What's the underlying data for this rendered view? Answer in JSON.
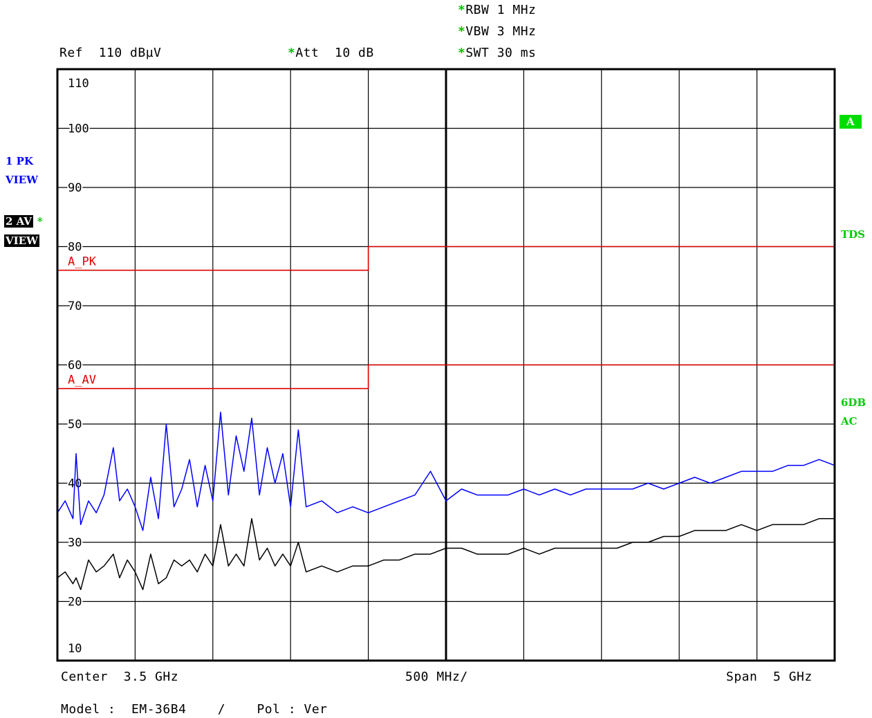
{
  "header": {
    "rbw_label": "RBW",
    "rbw_value": "1 MHz",
    "vbw_label": "VBW",
    "vbw_value": "3 MHz",
    "swt_label": "SWT",
    "swt_value": "30 ms",
    "ref_label": "Ref",
    "ref_value": "110 dBµV",
    "att_label": "Att",
    "att_value": "10 dB",
    "star": "*"
  },
  "left_panel": {
    "trace1_label": "1 PK",
    "trace1_mode": "VIEW",
    "trace2_label": "2 AV",
    "trace2_mode": "VIEW",
    "trace2_star": "*"
  },
  "right_panel": {
    "limit_badge": "A",
    "tds": "TDS",
    "sixdb": "6DB",
    "ac": "AC"
  },
  "footer": {
    "center_label": "Center",
    "center_value": "3.5 GHz",
    "per_div": "500 MHz/",
    "span_label": "Span",
    "span_value": "5 GHz",
    "model_label": "Model :",
    "model_value": "EM-36B4",
    "separator": "/",
    "pol_label": "Pol : Ver"
  },
  "colors": {
    "peak_trace": "#0000ff",
    "average_trace": "#000000",
    "limit_lines": "#e00000",
    "status_green": "#00cc00"
  },
  "chart_data": {
    "type": "line",
    "x_unit": "GHz",
    "xlim": [
      1,
      6
    ],
    "ylim": [
      10,
      110
    ],
    "y_unit": "dBµV",
    "yticks": [
      110,
      100,
      90,
      80,
      70,
      60,
      50,
      40,
      30,
      20,
      10
    ],
    "grid": true,
    "limit_lines": [
      {
        "name": "A_PK",
        "x": [
          1,
          3,
          3,
          6
        ],
        "y": [
          76,
          76,
          80,
          80
        ]
      },
      {
        "name": "A_AV",
        "x": [
          1,
          3,
          3,
          6
        ],
        "y": [
          56,
          56,
          60,
          60
        ]
      }
    ],
    "series": [
      {
        "name": "1 PK",
        "x": [
          1.0,
          1.05,
          1.1,
          1.12,
          1.15,
          1.2,
          1.25,
          1.3,
          1.36,
          1.4,
          1.45,
          1.5,
          1.55,
          1.6,
          1.65,
          1.7,
          1.75,
          1.8,
          1.85,
          1.9,
          1.95,
          2.0,
          2.05,
          2.1,
          2.15,
          2.2,
          2.25,
          2.3,
          2.35,
          2.4,
          2.45,
          2.5,
          2.55,
          2.6,
          2.7,
          2.8,
          2.9,
          3.0,
          3.1,
          3.2,
          3.3,
          3.4,
          3.5,
          3.6,
          3.7,
          3.8,
          3.9,
          4.0,
          4.1,
          4.2,
          4.3,
          4.4,
          4.5,
          4.6,
          4.7,
          4.8,
          4.9,
          5.0,
          5.1,
          5.2,
          5.3,
          5.4,
          5.5,
          5.6,
          5.7,
          5.8,
          5.9,
          6.0
        ],
        "y": [
          35,
          37,
          34,
          45,
          33,
          37,
          35,
          38,
          46,
          37,
          39,
          36,
          32,
          41,
          34,
          50,
          36,
          39,
          44,
          36,
          43,
          37,
          52,
          38,
          48,
          42,
          51,
          38,
          46,
          40,
          45,
          36,
          49,
          36,
          37,
          35,
          36,
          35,
          36,
          37,
          38,
          42,
          37,
          39,
          38,
          38,
          38,
          39,
          38,
          39,
          38,
          39,
          39,
          39,
          39,
          40,
          39,
          40,
          41,
          40,
          41,
          42,
          42,
          42,
          43,
          43,
          44,
          43
        ]
      },
      {
        "name": "2 AV",
        "x": [
          1.0,
          1.05,
          1.1,
          1.12,
          1.15,
          1.2,
          1.25,
          1.3,
          1.36,
          1.4,
          1.45,
          1.5,
          1.55,
          1.6,
          1.65,
          1.7,
          1.75,
          1.8,
          1.85,
          1.9,
          1.95,
          2.0,
          2.05,
          2.1,
          2.15,
          2.2,
          2.25,
          2.3,
          2.35,
          2.4,
          2.45,
          2.5,
          2.55,
          2.6,
          2.7,
          2.8,
          2.9,
          3.0,
          3.1,
          3.2,
          3.3,
          3.4,
          3.5,
          3.6,
          3.7,
          3.8,
          3.9,
          4.0,
          4.1,
          4.2,
          4.3,
          4.4,
          4.5,
          4.6,
          4.7,
          4.8,
          4.9,
          5.0,
          5.1,
          5.2,
          5.3,
          5.4,
          5.5,
          5.6,
          5.7,
          5.8,
          5.9,
          6.0
        ],
        "y": [
          24,
          25,
          23,
          24,
          22,
          27,
          25,
          26,
          28,
          24,
          27,
          25,
          22,
          28,
          23,
          24,
          27,
          26,
          27,
          25,
          28,
          26,
          33,
          26,
          28,
          26,
          34,
          27,
          29,
          26,
          28,
          26,
          30,
          25,
          26,
          25,
          26,
          26,
          27,
          27,
          28,
          28,
          29,
          29,
          28,
          28,
          28,
          29,
          28,
          29,
          29,
          29,
          29,
          29,
          30,
          30,
          31,
          31,
          32,
          32,
          32,
          33,
          32,
          33,
          33,
          33,
          34,
          34
        ]
      }
    ]
  }
}
